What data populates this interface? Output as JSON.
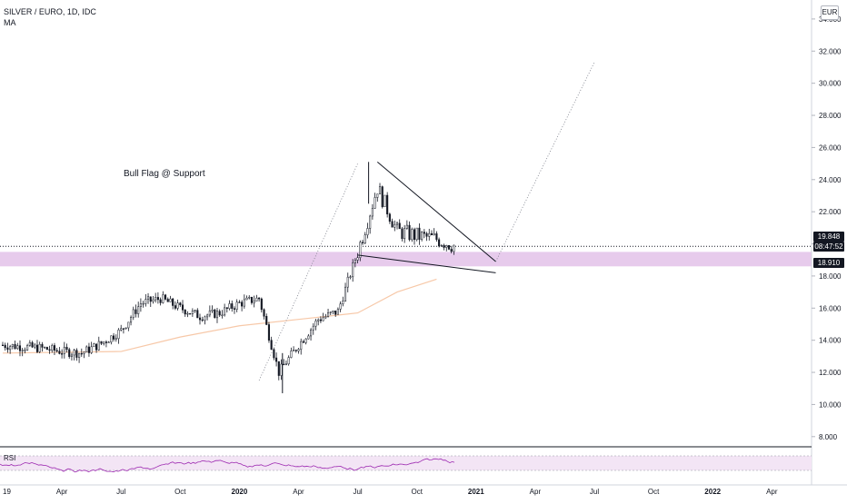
{
  "header": {
    "symbol_line": "SILVER / EURO, 1D, IDC",
    "indicator_label": "MA",
    "currency_badge": "EUR"
  },
  "annotation": "Bull Flag @ Support",
  "price_badges": {
    "last_price": "19.848",
    "countdown": "08:47:52",
    "reference": "18.910",
    "last_color": "#131722",
    "countdown_color": "#131722",
    "reference_color": "#131722"
  },
  "rsi_panel": {
    "label": "RSI",
    "line_color": "#9c27b0",
    "band_color": "#f3e5f5"
  },
  "colors": {
    "candles": "#131722",
    "ma_line": "#f7c8a8",
    "support_band": "#e1bee7",
    "trendline": "#131722",
    "channel_dotted": "#787b86"
  },
  "chart_data": {
    "type": "candlestick",
    "title": "SILVER / EURO, 1D, IDC",
    "ylabel": "EUR",
    "ylim": [
      7.2,
      34.2
    ],
    "y_ticks": [
      "8.000",
      "10.000",
      "12.000",
      "14.000",
      "16.000",
      "18.000",
      "20.000",
      "22.000",
      "24.000",
      "26.000",
      "28.000",
      "30.000",
      "32.000",
      "34.000"
    ],
    "x_ticks": [
      "19",
      "Apr",
      "Jul",
      "Oct",
      "2020",
      "Apr",
      "Jul",
      "Oct",
      "2021",
      "Apr",
      "Jul",
      "Oct",
      "2022",
      "Apr"
    ],
    "x_tick_bold": [
      "2020",
      "2021",
      "2022"
    ],
    "grid": false,
    "price_path": [
      {
        "month": "2019-01",
        "close": 13.7
      },
      {
        "month": "2019-02",
        "close": 13.6
      },
      {
        "month": "2019-03",
        "close": 13.5
      },
      {
        "month": "2019-04",
        "close": 13.3
      },
      {
        "month": "2019-05",
        "close": 13.2
      },
      {
        "month": "2019-06",
        "close": 13.8
      },
      {
        "month": "2019-07",
        "close": 14.6
      },
      {
        "month": "2019-08",
        "close": 16.3
      },
      {
        "month": "2019-09",
        "close": 16.6
      },
      {
        "month": "2019-10",
        "close": 16.0
      },
      {
        "month": "2019-11",
        "close": 15.5
      },
      {
        "month": "2019-12",
        "close": 15.7
      },
      {
        "month": "2020-01",
        "close": 16.3
      },
      {
        "month": "2020-02",
        "close": 16.6
      },
      {
        "month": "2020-03",
        "close": 12.0
      },
      {
        "month": "2020-04",
        "close": 13.7
      },
      {
        "month": "2020-05",
        "close": 15.3
      },
      {
        "month": "2020-06",
        "close": 15.8
      },
      {
        "month": "2020-07",
        "close": 19.5
      },
      {
        "month": "2020-08",
        "close": 23.5
      },
      {
        "month": "2020-09",
        "close": 20.8
      },
      {
        "month": "2020-10",
        "close": 20.5
      },
      {
        "month": "2020-11",
        "close": 20.3
      },
      {
        "month": "2020-12",
        "close": 19.85
      }
    ],
    "key_prices": {
      "high": 25.1,
      "low": 10.7,
      "last": 19.848,
      "support": 18.91
    },
    "moving_average": [
      {
        "month": "2019-01",
        "value": 13.2
      },
      {
        "month": "2019-07",
        "value": 13.3
      },
      {
        "month": "2019-10",
        "value": 14.2
      },
      {
        "month": "2020-01",
        "value": 14.9
      },
      {
        "month": "2020-04",
        "value": 15.3
      },
      {
        "month": "2020-07",
        "value": 15.7
      },
      {
        "month": "2020-09",
        "value": 17.0
      },
      {
        "month": "2020-11",
        "value": 17.8
      }
    ],
    "support_zone": [
      18.6,
      19.5
    ],
    "flag_upper_line": {
      "from": [
        "2020-08",
        25.1
      ],
      "to": [
        "2021-02",
        18.9
      ]
    },
    "flag_lower_line": {
      "from": [
        "2020-07",
        19.3
      ],
      "to": [
        "2021-02",
        18.2
      ]
    },
    "projection_line": {
      "from": [
        "2021-02",
        18.9
      ],
      "to": [
        "2021-07",
        31.3
      ]
    },
    "pole_line": {
      "from": [
        "2020-02",
        11.5
      ],
      "to": [
        "2020-07",
        25.0
      ]
    }
  }
}
